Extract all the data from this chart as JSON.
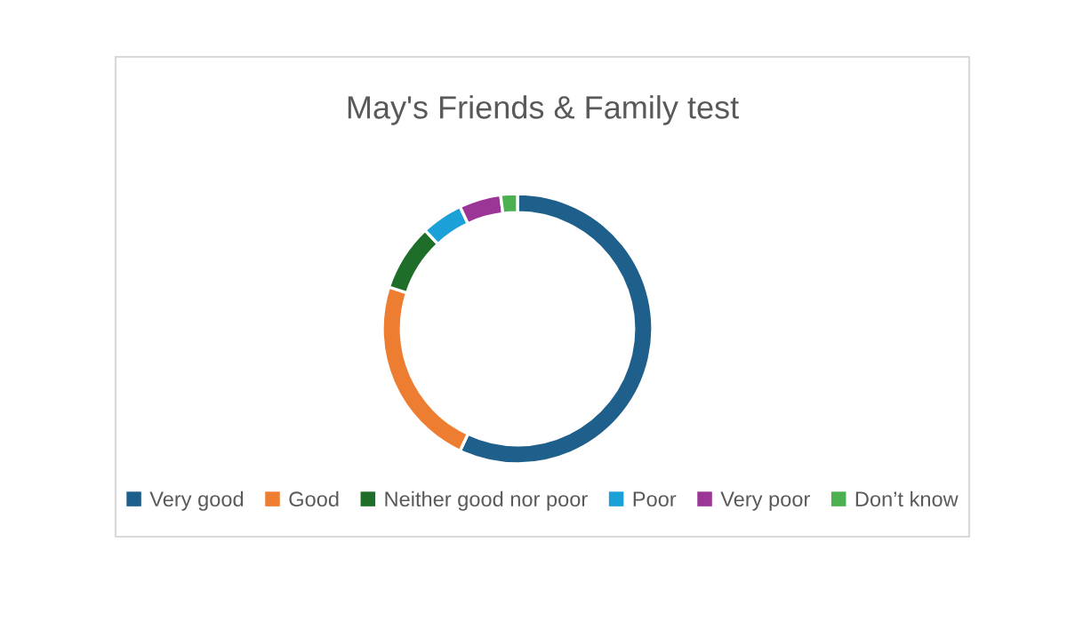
{
  "chart_data": {
    "type": "donut",
    "title": "May's Friends & Family test",
    "categories": [
      "Very good",
      "Good",
      "Neither good nor poor",
      "Poor",
      "Very poor",
      "Don’t know"
    ],
    "values": [
      57,
      23,
      8,
      5,
      5,
      2
    ],
    "colors": [
      "#1f5f8b",
      "#ed7d31",
      "#1e6e2a",
      "#1ca0d8",
      "#9b3596",
      "#4caf50"
    ],
    "legend": "bottom"
  }
}
